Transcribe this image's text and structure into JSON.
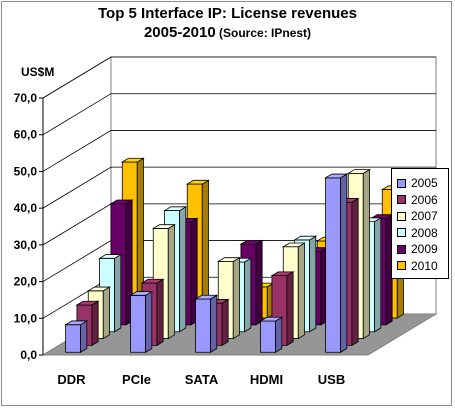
{
  "title": {
    "line1": "Top 5 Interface IP:  License revenues",
    "line2_main": "2005-2010",
    "line2_source": " (Source: IPnest)"
  },
  "unit_label": "US$M",
  "colors": {
    "2005": "#9999ff",
    "2006": "#993366",
    "2007": "#ffffcc",
    "2008": "#ccffff",
    "2009": "#660066",
    "2010": "#ffc000"
  },
  "chart_data": {
    "type": "bar",
    "variant": "3d-clustered",
    "categories": [
      "DDR",
      "PCIe",
      "SATA",
      "HDMI",
      "USB"
    ],
    "ylabel": "US$M",
    "ylim": [
      0,
      70
    ],
    "yticks": [
      "0,0",
      "10,0",
      "20,0",
      "30,0",
      "40,0",
      "50,0",
      "60,0",
      "70,0"
    ],
    "grid": true,
    "legend": "right",
    "series": [
      {
        "name": "2005",
        "values": [
          7.5,
          15.5,
          14.5,
          8.5,
          47.5
        ]
      },
      {
        "name": "2006",
        "values": [
          11,
          17,
          11.5,
          19,
          39
        ]
      },
      {
        "name": "2007",
        "values": [
          13,
          30,
          21,
          25,
          45
        ]
      },
      {
        "name": "2008",
        "values": [
          20,
          33,
          19,
          25,
          30
        ]
      },
      {
        "name": "2009",
        "values": [
          33,
          28,
          22,
          20,
          29
        ]
      },
      {
        "name": "2010",
        "values": [
          42.5,
          36.5,
          8.5,
          21,
          35
        ]
      }
    ]
  }
}
